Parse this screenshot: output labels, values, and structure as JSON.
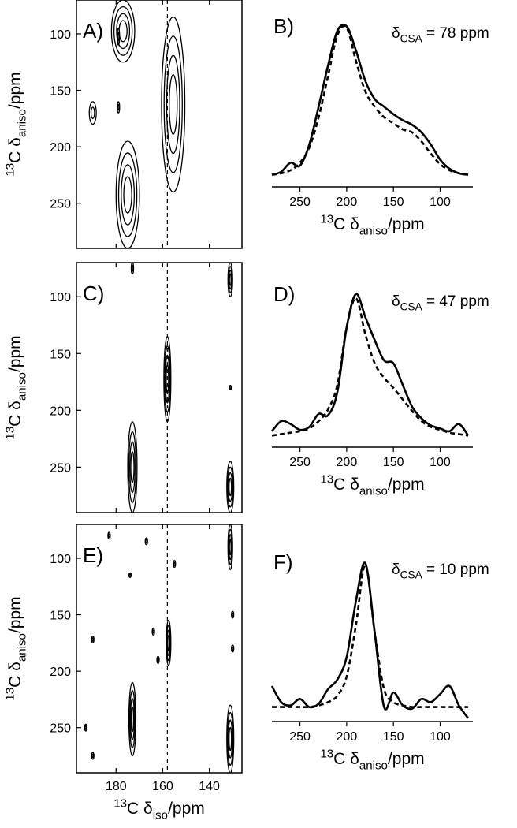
{
  "chart_data": [
    {
      "type": "contour",
      "panel_label": "A)",
      "y_label": {
        "sup": "13",
        "base": "C δ",
        "sub": "aniso",
        "tail": "/ppm"
      },
      "xlim": [
        197,
        126
      ],
      "xticks": [
        180,
        160,
        140
      ],
      "show_xtick_labels": false,
      "ylim": [
        70,
        290
      ],
      "yticks": [
        100,
        150,
        200,
        250
      ],
      "ref_line_x": 158,
      "color": "#000000",
      "peaks": [
        {
          "x": 177,
          "y": [
            70,
            125
          ],
          "width": 10
        },
        {
          "x": 155.5,
          "y": [
            85,
            240
          ],
          "width": 10
        },
        {
          "x": 175,
          "y": [
            195,
            290
          ],
          "width": 10
        },
        {
          "x": 190,
          "y": [
            160,
            180
          ],
          "width": 3
        },
        {
          "x": 179,
          "y": [
            160,
            170
          ],
          "width": 1
        },
        {
          "x": 179,
          "y": [
            95,
            110
          ],
          "width": 1
        }
      ]
    },
    {
      "type": "line",
      "panel_label": "B)",
      "annotation": {
        "base": "δ",
        "sub": "CSA",
        "tail": " = 78 ppm"
      },
      "x_label": {
        "sup": "13",
        "base": "C δ",
        "sub": "aniso",
        "tail": "/ppm"
      },
      "x": [
        280,
        270,
        260,
        250,
        240,
        230,
        220,
        210,
        200,
        190,
        180,
        170,
        160,
        150,
        140,
        130,
        120,
        110,
        100,
        90,
        80,
        70
      ],
      "xlim": [
        280,
        65
      ],
      "xticks": [
        250,
        200,
        150,
        100
      ],
      "ylim": [
        -0.08,
        1.05
      ],
      "series": [
        {
          "color": "#000000",
          "dashed": false,
          "values": [
            0.0,
            0.02,
            0.08,
            0.06,
            0.2,
            0.45,
            0.72,
            0.95,
            0.98,
            0.82,
            0.62,
            0.5,
            0.45,
            0.4,
            0.36,
            0.33,
            0.28,
            0.2,
            0.1,
            0.04,
            0.01,
            0.0
          ]
        },
        {
          "color": "#000000",
          "dashed": true,
          "values": [
            0.0,
            0.01,
            0.03,
            0.08,
            0.18,
            0.38,
            0.65,
            0.92,
            0.97,
            0.75,
            0.55,
            0.45,
            0.38,
            0.34,
            0.3,
            0.28,
            0.22,
            0.14,
            0.07,
            0.03,
            0.01,
            0.0
          ]
        }
      ]
    },
    {
      "type": "contour",
      "panel_label": "C)",
      "y_label": {
        "sup": "13",
        "base": "C δ",
        "sub": "aniso",
        "tail": "/ppm"
      },
      "xlim": [
        197,
        126
      ],
      "xticks": [
        180,
        160,
        140
      ],
      "show_xtick_labels": false,
      "ylim": [
        70,
        290
      ],
      "yticks": [
        100,
        150,
        200,
        250
      ],
      "ref_line_x": 158,
      "color": "#000000",
      "peaks": [
        {
          "x": 158,
          "y": [
            135,
            210
          ],
          "width": 3
        },
        {
          "x": 173,
          "y": [
            210,
            290
          ],
          "width": 4
        },
        {
          "x": 131,
          "y": [
            70,
            100
          ],
          "width": 2
        },
        {
          "x": 131,
          "y": [
            245,
            290
          ],
          "width": 3
        },
        {
          "x": 173,
          "y": [
            70,
            80
          ],
          "width": 1
        },
        {
          "x": 131,
          "y": [
            178,
            182
          ],
          "width": 1
        }
      ]
    },
    {
      "type": "line",
      "panel_label": "D)",
      "annotation": {
        "base": "δ",
        "sub": "CSA",
        "tail": " = 47 ppm"
      },
      "x_label": {
        "sup": "13",
        "base": "C δ",
        "sub": "aniso",
        "tail": "/ppm"
      },
      "x": [
        280,
        270,
        260,
        250,
        240,
        230,
        220,
        210,
        200,
        190,
        180,
        170,
        160,
        150,
        140,
        130,
        120,
        110,
        100,
        90,
        80,
        70
      ],
      "xlim": [
        280,
        65
      ],
      "xticks": [
        250,
        200,
        150,
        100
      ],
      "ylim": [
        -0.08,
        1.05
      ],
      "series": [
        {
          "color": "#000000",
          "dashed": false,
          "values": [
            0.03,
            0.1,
            0.08,
            0.04,
            0.06,
            0.15,
            0.14,
            0.3,
            0.75,
            0.98,
            0.82,
            0.66,
            0.52,
            0.5,
            0.35,
            0.2,
            0.12,
            0.07,
            0.05,
            0.03,
            0.08,
            0.0
          ]
        },
        {
          "color": "#000000",
          "dashed": true,
          "values": [
            0.0,
            0.01,
            0.02,
            0.03,
            0.05,
            0.1,
            0.18,
            0.35,
            0.75,
            0.95,
            0.7,
            0.5,
            0.4,
            0.33,
            0.25,
            0.17,
            0.1,
            0.06,
            0.04,
            0.02,
            0.01,
            0.0
          ]
        }
      ]
    },
    {
      "type": "contour",
      "panel_label": "E)",
      "y_label": {
        "sup": "13",
        "base": "C δ",
        "sub": "aniso",
        "tail": "/ppm"
      },
      "x_label": {
        "sup": "13",
        "base": "C δ",
        "sub": "iso",
        "tail": "/ppm"
      },
      "xlim": [
        197,
        126
      ],
      "xticks": [
        180,
        160,
        140
      ],
      "show_xtick_labels": true,
      "ylim": [
        70,
        290
      ],
      "yticks": [
        100,
        150,
        200,
        250
      ],
      "ref_line_x": 158,
      "color": "#000000",
      "peaks": [
        {
          "x": 157.5,
          "y": [
            155,
            195
          ],
          "width": 2
        },
        {
          "x": 173,
          "y": [
            210,
            275
          ],
          "width": 3
        },
        {
          "x": 131,
          "y": [
            70,
            110
          ],
          "width": 2
        },
        {
          "x": 131,
          "y": [
            230,
            290
          ],
          "width": 3
        },
        {
          "x": 183,
          "y": [
            77,
            83
          ],
          "width": 1
        },
        {
          "x": 167,
          "y": [
            82,
            88
          ],
          "width": 1
        },
        {
          "x": 155,
          "y": [
            102,
            108
          ],
          "width": 1
        },
        {
          "x": 190,
          "y": [
            169,
            175
          ],
          "width": 1
        },
        {
          "x": 164,
          "y": [
            162,
            168
          ],
          "width": 1
        },
        {
          "x": 162,
          "y": [
            187,
            193
          ],
          "width": 1
        },
        {
          "x": 130,
          "y": [
            147,
            153
          ],
          "width": 1
        },
        {
          "x": 130,
          "y": [
            177,
            183
          ],
          "width": 1
        },
        {
          "x": 193,
          "y": [
            247,
            253
          ],
          "width": 1
        },
        {
          "x": 190,
          "y": [
            272,
            278
          ],
          "width": 1
        },
        {
          "x": 174,
          "y": [
            113,
            117
          ],
          "width": 1
        }
      ]
    },
    {
      "type": "line",
      "panel_label": "F)",
      "annotation": {
        "base": "δ",
        "sub": "CSA",
        "tail": " = 10 ppm"
      },
      "x_label": {
        "sup": "13",
        "base": "C δ",
        "sub": "aniso",
        "tail": "/ppm"
      },
      "x": [
        280,
        270,
        260,
        250,
        240,
        230,
        220,
        210,
        200,
        190,
        180,
        170,
        160,
        150,
        140,
        130,
        120,
        110,
        100,
        90,
        80,
        70
      ],
      "xlim": [
        280,
        65
      ],
      "xticks": [
        250,
        200,
        150,
        100
      ],
      "ylim": [
        0,
        1.05
      ],
      "series": [
        {
          "color": "#000000",
          "dashed": false,
          "values": [
            0.22,
            0.12,
            0.1,
            0.14,
            0.09,
            0.11,
            0.2,
            0.26,
            0.4,
            0.75,
            0.98,
            0.55,
            0.09,
            0.18,
            0.1,
            0.08,
            0.14,
            0.12,
            0.17,
            0.22,
            0.1,
            0.02
          ]
        },
        {
          "color": "#000000",
          "dashed": true,
          "values": [
            0.09,
            0.09,
            0.09,
            0.09,
            0.09,
            0.1,
            0.12,
            0.16,
            0.28,
            0.6,
            0.97,
            0.55,
            0.2,
            0.12,
            0.1,
            0.09,
            0.09,
            0.09,
            0.09,
            0.09,
            0.09,
            0.09
          ]
        }
      ]
    }
  ]
}
